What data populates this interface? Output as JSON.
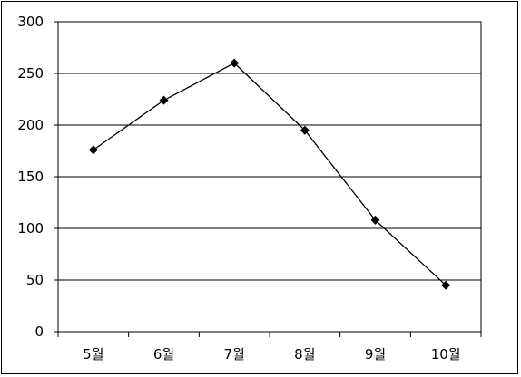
{
  "chart_data": {
    "type": "line",
    "title": "",
    "xlabel": "",
    "ylabel": "",
    "categories": [
      "5월",
      "6월",
      "7월",
      "8월",
      "9월",
      "10월"
    ],
    "series": [
      {
        "values": [
          176,
          224,
          260,
          195,
          108,
          45
        ]
      }
    ],
    "ylim": [
      0,
      300
    ],
    "yticks": [
      "0",
      "50",
      "100",
      "150",
      "200",
      "250",
      "300"
    ],
    "grid": true,
    "legend": "none",
    "colors": {
      "line": "#000000",
      "marker": "#000000",
      "grid": "#000000"
    }
  }
}
